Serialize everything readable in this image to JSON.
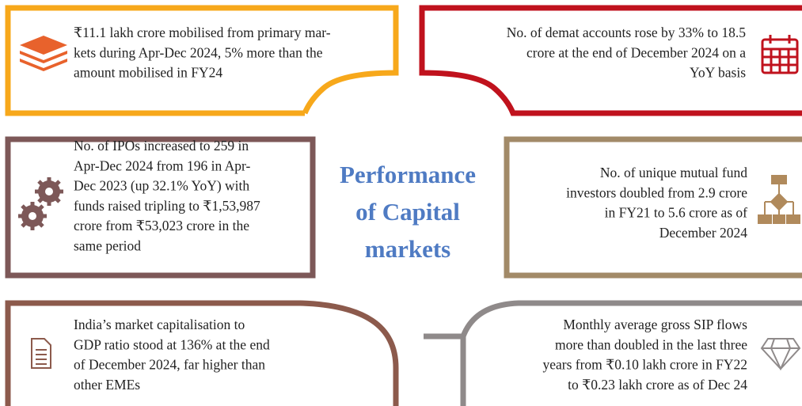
{
  "title": {
    "lines": [
      "Performance",
      "of Capital",
      "markets"
    ]
  },
  "boxes": [
    {
      "lines": [
        "₹11.1 lakh crore mobilised from primary mar-",
        "kets during Apr-Dec 2024, 5% more than the",
        "amount mobilised in FY24"
      ]
    },
    {
      "lines": [
        "No. of demat accounts rose by 33% to 18.5",
        "crore at the end of December 2024 on a",
        "YoY basis"
      ]
    },
    {
      "lines": [
        "No. of IPOs increased to 259 in",
        "Apr-Dec 2024 from 196 in Apr-",
        "Dec 2023 (up 32.1% YoY) with",
        "funds raised tripling to ₹1,53,987",
        "crore from ₹53,023 crore in the",
        "same period"
      ]
    },
    {
      "lines": [
        "No. of unique mutual fund",
        "investors  doubled from 2.9 crore",
        "in FY21 to 5.6 crore as of",
        "December 2024"
      ]
    },
    {
      "lines": [
        "India’s market capitalisation to",
        "GDP ratio stood at 136% at the end",
        "of December 2024, far higher than",
        "other EMEs"
      ]
    },
    {
      "lines": [
        "Monthly average gross SIP flows",
        "more than doubled in the last three",
        "years from ₹0.10 lakh crore in FY22",
        "to ₹0.23 lakh crore as of Dec 24"
      ]
    }
  ]
}
